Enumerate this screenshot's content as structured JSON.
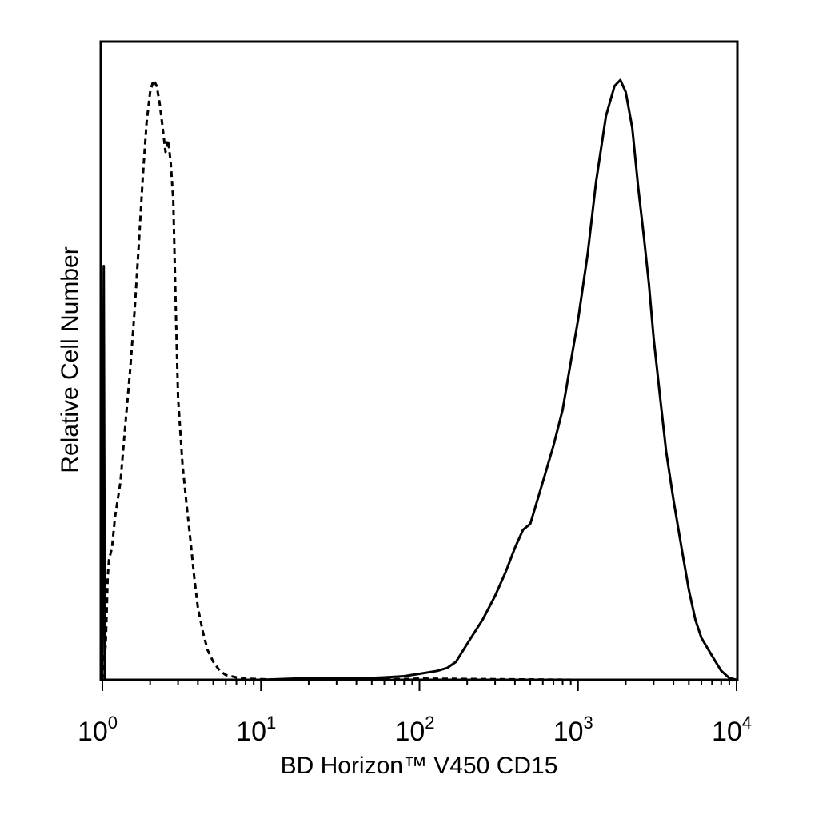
{
  "chart_data": {
    "type": "line",
    "title": "",
    "xlabel": "BD Horizon™ V450 CD15",
    "ylabel": "Relative Cell Number",
    "xscale": "log",
    "xlim": [
      1,
      10000
    ],
    "ylim": [
      0,
      1.0
    ],
    "x_ticks": [
      {
        "value": 1,
        "base": "10",
        "exp": "0"
      },
      {
        "value": 10,
        "base": "10",
        "exp": "1"
      },
      {
        "value": 100,
        "base": "10",
        "exp": "2"
      },
      {
        "value": 1000,
        "base": "10",
        "exp": "3"
      },
      {
        "value": 10000,
        "base": "10",
        "exp": "4"
      }
    ],
    "y_ticks_labeled": false,
    "grid": false,
    "legend": false,
    "series": [
      {
        "style": "dashed",
        "color": "#000000",
        "x": [
          1.0,
          1.02,
          1.05,
          1.08,
          1.1,
          1.15,
          1.2,
          1.3,
          1.4,
          1.5,
          1.6,
          1.7,
          1.8,
          1.9,
          2.0,
          2.1,
          2.2,
          2.3,
          2.4,
          2.5,
          2.6,
          2.7,
          2.8,
          2.9,
          3.0,
          3.2,
          3.4,
          3.6,
          3.8,
          4.0,
          4.3,
          4.6,
          5.0,
          5.5,
          6.0,
          7.0,
          8.0,
          10,
          15,
          25,
          50,
          100,
          1000,
          10000
        ],
        "y": [
          0.0,
          0.02,
          0.06,
          0.17,
          0.2,
          0.22,
          0.27,
          0.33,
          0.43,
          0.52,
          0.62,
          0.73,
          0.84,
          0.93,
          0.98,
          1.0,
          0.99,
          0.96,
          0.92,
          0.88,
          0.9,
          0.86,
          0.8,
          0.62,
          0.47,
          0.36,
          0.29,
          0.23,
          0.17,
          0.12,
          0.08,
          0.05,
          0.03,
          0.015,
          0.008,
          0.004,
          0.002,
          0.001,
          0.0,
          0.003,
          0.0,
          0.002,
          0.0,
          0.0
        ]
      },
      {
        "style": "solid",
        "color": "#000000",
        "x": [
          1.0,
          1.02,
          1.03,
          1.04,
          1.05,
          2,
          5,
          10,
          20,
          40,
          60,
          80,
          100,
          130,
          150,
          170,
          200,
          250,
          300,
          350,
          400,
          450,
          500,
          600,
          700,
          800,
          900,
          1000,
          1150,
          1300,
          1500,
          1700,
          1850,
          2000,
          2200,
          2400,
          2600,
          2800,
          3000,
          3300,
          3600,
          4000,
          4500,
          5000,
          5500,
          6000,
          7000,
          8000,
          9000,
          10000
        ],
        "y": [
          0.0,
          0.69,
          0.3,
          0.0,
          0.0,
          0.0,
          0.0,
          0.0,
          0.003,
          0.002,
          0.004,
          0.006,
          0.01,
          0.015,
          0.02,
          0.03,
          0.06,
          0.1,
          0.14,
          0.18,
          0.22,
          0.25,
          0.26,
          0.33,
          0.39,
          0.45,
          0.53,
          0.6,
          0.71,
          0.83,
          0.94,
          0.99,
          1.0,
          0.98,
          0.92,
          0.82,
          0.74,
          0.66,
          0.57,
          0.47,
          0.38,
          0.3,
          0.22,
          0.15,
          0.1,
          0.07,
          0.04,
          0.015,
          0.003,
          0.0
        ]
      }
    ]
  }
}
